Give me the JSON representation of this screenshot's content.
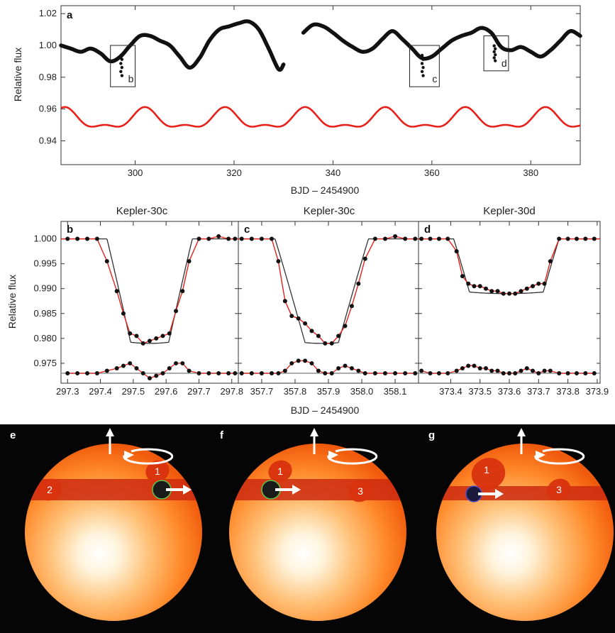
{
  "colors": {
    "model": "#e8201a",
    "data": "#111111",
    "baseline": "#9a9a9a",
    "background_bottom": "#050505"
  },
  "chart_data": [
    {
      "type": "scatter",
      "panel_label": "a",
      "title": "",
      "xlabel": "BJD – 2454900",
      "ylabel": "Relative flux",
      "xlim": [
        285,
        390
      ],
      "ylim": [
        0.925,
        1.025
      ],
      "xticks": [
        300,
        320,
        340,
        360,
        380
      ],
      "yticks": [
        0.94,
        0.96,
        0.98,
        1.0,
        1.02
      ],
      "ytick_labels": [
        "0.94",
        "0.96",
        "0.98",
        "1.00",
        "1.02"
      ],
      "series": [
        {
          "kind": "lightcurve",
          "gaps": [
            [
              330,
              334
            ]
          ],
          "x": [
            285,
            287,
            289,
            291,
            293,
            295,
            297,
            299,
            301,
            303,
            305,
            307,
            309,
            311,
            313,
            315,
            317,
            319,
            321,
            323,
            325,
            327,
            329,
            330
          ],
          "y": [
            1.0,
            0.998,
            0.996,
            0.998,
            0.995,
            0.99,
            0.993,
            1.0,
            1.006,
            1.006,
            1.003,
            1.0,
            0.993,
            0.986,
            0.992,
            1.003,
            1.01,
            1.012,
            1.014,
            1.015,
            1.01,
            0.998,
            0.985,
            0.988
          ]
        },
        {
          "kind": "lightcurve",
          "x": [
            334,
            336,
            338,
            340,
            342,
            344,
            346,
            348,
            350,
            352,
            354,
            356,
            358,
            360,
            362,
            364,
            366,
            368,
            370,
            372,
            374,
            376,
            378,
            380,
            382,
            384,
            386,
            388,
            390
          ],
          "y": [
            1.008,
            1.013,
            1.012,
            1.008,
            1.003,
            0.999,
            0.996,
            0.998,
            1.004,
            1.009,
            1.004,
            0.998,
            0.992,
            0.993,
            0.998,
            1.003,
            1.006,
            1.008,
            1.011,
            1.008,
            0.999,
            0.997,
            0.999,
            0.996,
            0.993,
            0.997,
            1.003,
            1.009,
            1.006
          ]
        },
        {
          "kind": "spot-model",
          "x0": 285,
          "period": 16.2,
          "mean": 0.953,
          "amp": 0.0075
        }
      ],
      "transit_boxes": [
        {
          "label": "b",
          "x": [
            295,
            300
          ],
          "y": [
            0.974,
            1.0
          ]
        },
        {
          "label": "c",
          "x": [
            355.5,
            361.5
          ],
          "y": [
            0.974,
            1.0
          ]
        },
        {
          "label": "d",
          "x": [
            370.5,
            375.5
          ],
          "y": [
            0.984,
            1.006
          ]
        }
      ]
    },
    {
      "type": "scatter",
      "panel_label": "b",
      "title": "Kepler-30c",
      "xlim": [
        297.28,
        297.82
      ],
      "ylim": [
        0.971,
        1.0035
      ],
      "xticks": [
        297.3,
        297.4,
        297.5,
        297.6,
        297.7,
        297.8
      ],
      "ylabel": "Relative flux",
      "yticks": [
        0.975,
        0.98,
        0.985,
        0.99,
        0.995,
        1.0
      ],
      "ytick_labels": [
        "0.975",
        "0.980",
        "0.985",
        "0.990",
        "0.995",
        "1.000"
      ],
      "points_x": [
        297.3,
        297.33,
        297.36,
        297.39,
        297.42,
        297.45,
        297.47,
        297.49,
        297.51,
        297.53,
        297.55,
        297.57,
        297.59,
        297.61,
        297.63,
        297.65,
        297.67,
        297.7,
        297.73,
        297.76,
        297.79,
        297.81
      ],
      "points_y": [
        1.0,
        1.0,
        1.0,
        1.0,
        0.9955,
        0.9895,
        0.985,
        0.981,
        0.9805,
        0.979,
        0.9795,
        0.98,
        0.9805,
        0.981,
        0.9855,
        0.9895,
        0.9955,
        1.0,
        1.0,
        1.0005,
        1.0,
        1.0
      ],
      "residual_offset": 0.973,
      "residuals": [
        0,
        0,
        0,
        0,
        0.0005,
        0.001,
        0.0015,
        0.002,
        0.001,
        0,
        -0.001,
        -0.0005,
        0,
        0.001,
        0.002,
        0.002,
        0.0005,
        0,
        0,
        0,
        0,
        0
      ],
      "t1": 297.42,
      "t2": 297.5,
      "t3": 297.6,
      "t4": 297.68,
      "depth_mid": 0.979
    },
    {
      "type": "scatter",
      "panel_label": "c",
      "title": "Kepler-30c",
      "xlim": [
        357.63,
        358.17
      ],
      "ylim": [
        0.971,
        1.0035
      ],
      "xticks": [
        357.7,
        357.8,
        357.9,
        358.0,
        358.1
      ],
      "points_x": [
        357.64,
        357.67,
        357.7,
        357.73,
        357.75,
        357.77,
        357.79,
        357.81,
        357.83,
        357.85,
        357.87,
        357.89,
        357.91,
        357.93,
        357.95,
        357.97,
        357.99,
        358.01,
        358.04,
        358.07,
        358.1,
        358.13,
        358.16
      ],
      "points_y": [
        1.0,
        1.0,
        1.0,
        1.0,
        0.9955,
        0.9875,
        0.9845,
        0.984,
        0.983,
        0.9815,
        0.9805,
        0.979,
        0.979,
        0.9805,
        0.9825,
        0.9865,
        0.991,
        0.996,
        1.0,
        1.0,
        1.0005,
        1.0,
        1.0
      ],
      "residual_offset": 0.973,
      "residuals": [
        0,
        0,
        0,
        0,
        0,
        0.0005,
        0.002,
        0.0025,
        0.0025,
        0.002,
        0.0005,
        0,
        0,
        0.001,
        0.0015,
        0.001,
        0.0005,
        0,
        0,
        0,
        0,
        0,
        0
      ],
      "t1": 357.74,
      "t2": 357.84,
      "t3": 357.94,
      "t4": 358.02,
      "depth_mid": 0.979
    },
    {
      "type": "scatter",
      "panel_label": "d",
      "title": "Kepler-30d",
      "xlim": [
        373.29,
        373.91
      ],
      "ylim": [
        0.971,
        1.0035
      ],
      "xticks": [
        373.4,
        373.5,
        373.6,
        373.7,
        373.8,
        373.9
      ],
      "points_x": [
        373.3,
        373.33,
        373.36,
        373.39,
        373.42,
        373.44,
        373.46,
        373.48,
        373.5,
        373.52,
        373.54,
        373.56,
        373.58,
        373.6,
        373.62,
        373.64,
        373.66,
        373.68,
        373.7,
        373.72,
        373.74,
        373.77,
        373.8,
        373.83,
        373.86,
        373.89
      ],
      "points_y": [
        1.0,
        1.0,
        1.0,
        1.0,
        0.9975,
        0.9925,
        0.991,
        0.9905,
        0.9905,
        0.99,
        0.9895,
        0.9895,
        0.989,
        0.989,
        0.989,
        0.9895,
        0.99,
        0.9905,
        0.991,
        0.991,
        0.9955,
        1.0,
        1.0,
        1.0,
        1.0,
        1.0
      ],
      "residual_offset": 0.973,
      "residuals": [
        0.0005,
        0,
        0,
        0,
        0.0005,
        0.001,
        0.0015,
        0.0015,
        0.001,
        0.001,
        0.0005,
        0.0005,
        0,
        0,
        0,
        0.0005,
        0.001,
        0.0005,
        0,
        0.0005,
        0.0005,
        0,
        0,
        0,
        0,
        0
      ],
      "t1": 373.41,
      "t2": 373.47,
      "t3": 373.71,
      "t4": 373.77,
      "depth_mid": 0.989
    }
  ],
  "shared_xlabel": "BJD – 2454900",
  "star_panels": [
    {
      "label": "e",
      "spots": [
        "1",
        "2"
      ]
    },
    {
      "label": "f",
      "spots": [
        "1",
        "3"
      ]
    },
    {
      "label": "g",
      "spots": [
        "1",
        "3"
      ]
    }
  ]
}
